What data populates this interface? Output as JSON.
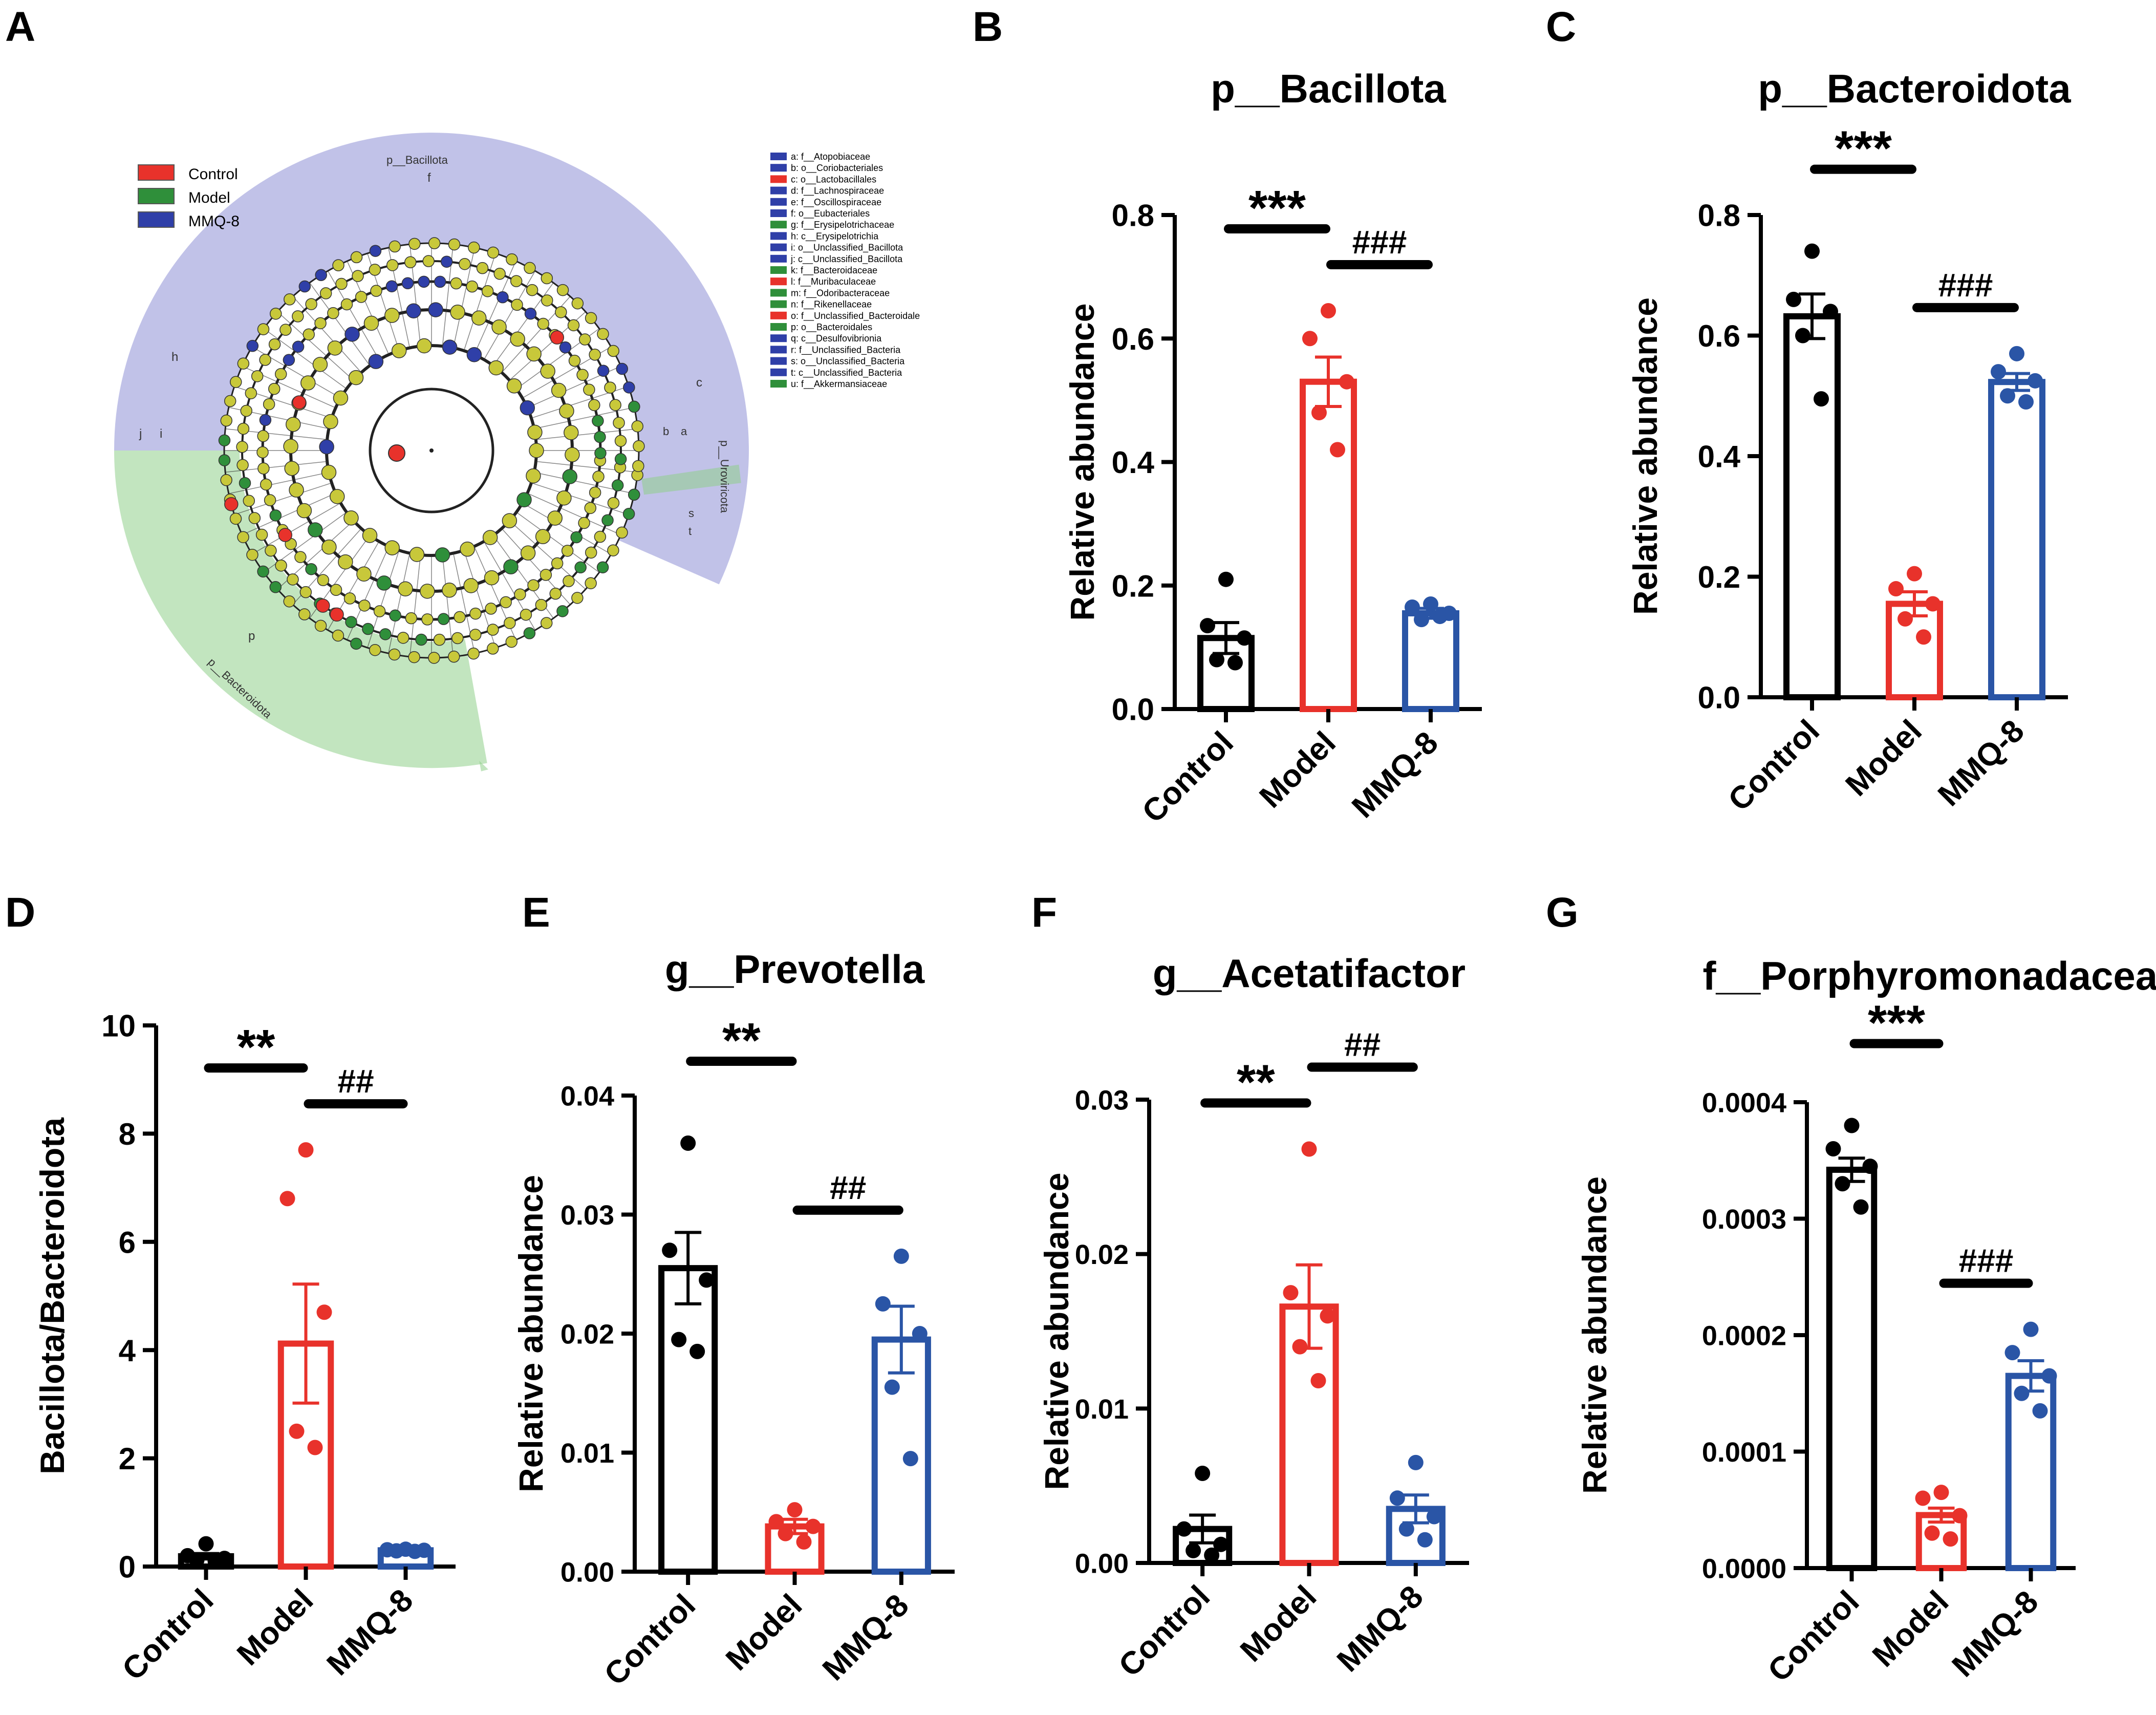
{
  "panel_labels": {
    "A": "A",
    "B": "B",
    "C": "C",
    "D": "D",
    "E": "E",
    "F": "F",
    "G": "G"
  },
  "colors": {
    "Control": "#000000",
    "Model": "#e8322b",
    "MMQ-8": "#2a55a6"
  },
  "cladogram": {
    "legend_groups": [
      {
        "name": "Control",
        "color": "#e8322b"
      },
      {
        "name": "Model",
        "color": "#2f8f3a"
      },
      {
        "name": "MMQ-8",
        "color": "#2f3fa8"
      }
    ],
    "clade_labels": {
      "bacillota": "p__Bacillota",
      "bacteroidota": "p__Bacteroidota",
      "urovircota": "p__Uroviricota"
    },
    "sector_letters": [
      "a",
      "b",
      "c",
      "d",
      "e",
      "f",
      "g",
      "h",
      "i",
      "j",
      "k",
      "l",
      "m",
      "n",
      "o",
      "p",
      "q",
      "r",
      "s",
      "t",
      "u"
    ],
    "taxa_legend": [
      {
        "text": "a: f__Atopobiaceae",
        "color": "#2f3fa8"
      },
      {
        "text": "b: o__Coriobacteriales",
        "color": "#2f3fa8"
      },
      {
        "text": "c: o__Lactobacillales",
        "color": "#e8322b"
      },
      {
        "text": "d: f__Lachnospiraceae",
        "color": "#2f3fa8"
      },
      {
        "text": "e: f__Oscillospiraceae",
        "color": "#2f3fa8"
      },
      {
        "text": "f: o__Eubacteriales",
        "color": "#2f3fa8"
      },
      {
        "text": "g: f__Erysipelotrichaceae",
        "color": "#2f8f3a"
      },
      {
        "text": "h: c__Erysipelotrichia",
        "color": "#2f3fa8"
      },
      {
        "text": "i: o__Unclassified_Bacillota",
        "color": "#2f3fa8"
      },
      {
        "text": "j: c__Unclassified_Bacillota",
        "color": "#2f3fa8"
      },
      {
        "text": "k: f__Bacteroidaceae",
        "color": "#2f8f3a"
      },
      {
        "text": "l: f__Muribaculaceae",
        "color": "#e8322b"
      },
      {
        "text": "m: f__Odoribacteraceae",
        "color": "#2f8f3a"
      },
      {
        "text": "n: f__Rikenellaceae",
        "color": "#2f8f3a"
      },
      {
        "text": "o: f__Unclassified_Bacteroidale",
        "color": "#e8322b"
      },
      {
        "text": "p: o__Bacteroidales",
        "color": "#2f8f3a"
      },
      {
        "text": "q: c__Desulfovibrionia",
        "color": "#2f3fa8"
      },
      {
        "text": "r: f__Unclassified_Bacteria",
        "color": "#2f3fa8"
      },
      {
        "text": "s: o__Unclassified_Bacteria",
        "color": "#2f3fa8"
      },
      {
        "text": "t: c__Unclassified_Bacteria",
        "color": "#2f3fa8"
      },
      {
        "text": "u: f__Akkermansiaceae",
        "color": "#2f8f3a"
      }
    ]
  },
  "chart_data": [
    {
      "panel": "B",
      "type": "bar",
      "title": "p__Bacillota",
      "xlabel": "",
      "ylabel": "Relative abundance",
      "categories": [
        "Control",
        "Model",
        "MMQ-8"
      ],
      "ylim": [
        0,
        0.8
      ],
      "yticks": [
        "0.0",
        "0.2",
        "0.4",
        "0.6",
        "0.8"
      ],
      "values": [
        0.115,
        0.53,
        0.155
      ],
      "sem": [
        0.025,
        0.04,
        0.008
      ],
      "points": [
        [
          0.21,
          0.135,
          0.115,
          0.08,
          0.075
        ],
        [
          0.645,
          0.6,
          0.53,
          0.48,
          0.42
        ],
        [
          0.17,
          0.165,
          0.155,
          0.145,
          0.15
        ]
      ],
      "annotations": [
        {
          "text": "***",
          "from": 0,
          "to": 1,
          "level": 1
        },
        {
          "text": "###",
          "from": 1,
          "to": 2,
          "level": 0
        }
      ],
      "grid": false
    },
    {
      "panel": "C",
      "type": "bar",
      "title": "p__Bacteroidota",
      "xlabel": "",
      "ylabel": "Relative abundance",
      "categories": [
        "Control",
        "Model",
        "MMQ-8"
      ],
      "ylim": [
        0,
        0.8
      ],
      "yticks": [
        "0.0",
        "0.2",
        "0.4",
        "0.6",
        "0.8"
      ],
      "values": [
        0.632,
        0.155,
        0.523
      ],
      "sem": [
        0.037,
        0.02,
        0.014
      ],
      "points": [
        [
          0.74,
          0.66,
          0.64,
          0.6,
          0.495
        ],
        [
          0.205,
          0.18,
          0.155,
          0.13,
          0.1
        ],
        [
          0.57,
          0.54,
          0.525,
          0.5,
          0.49
        ]
      ],
      "annotations": [
        {
          "text": "***",
          "from": 0,
          "to": 1,
          "level": 1
        },
        {
          "text": "###",
          "from": 1,
          "to": 2,
          "level": 0
        }
      ],
      "grid": false
    },
    {
      "panel": "D",
      "type": "bar",
      "title": "",
      "xlabel": "",
      "ylabel": "Bacillota/Bacteroidota",
      "categories": [
        "Control",
        "Model",
        "MMQ-8"
      ],
      "ylim": [
        0,
        10
      ],
      "yticks": [
        "0",
        "2",
        "4",
        "6",
        "8",
        "10"
      ],
      "values": [
        0.19,
        4.12,
        0.3
      ],
      "sem": [
        0.05,
        1.1,
        0.02
      ],
      "points": [
        [
          0.42,
          0.2,
          0.15,
          0.12,
          0.1
        ],
        [
          7.7,
          6.8,
          4.7,
          2.5,
          2.2
        ],
        [
          0.32,
          0.31,
          0.3,
          0.29,
          0.28
        ]
      ],
      "annotations": [
        {
          "text": "**",
          "from": 0,
          "to": 1,
          "level": 1
        },
        {
          "text": "##",
          "from": 1,
          "to": 2,
          "level": 0
        }
      ],
      "grid": false
    },
    {
      "panel": "E",
      "type": "bar",
      "title": "g__Prevotella",
      "xlabel": "",
      "ylabel": "Relative abundance",
      "categories": [
        "Control",
        "Model",
        "MMQ-8"
      ],
      "ylim": [
        0,
        0.04
      ],
      "yticks": [
        "0.00",
        "0.01",
        "0.02",
        "0.03",
        "0.04"
      ],
      "values": [
        0.0255,
        0.0038,
        0.0195
      ],
      "sem": [
        0.003,
        0.0006,
        0.0028
      ],
      "points": [
        [
          0.036,
          0.027,
          0.0245,
          0.0195,
          0.0185
        ],
        [
          0.0052,
          0.0042,
          0.0038,
          0.0032,
          0.0025
        ],
        [
          0.0265,
          0.0225,
          0.02,
          0.0155,
          0.0095
        ]
      ],
      "annotations": [
        {
          "text": "**",
          "from": 0,
          "to": 1,
          "level": 1
        },
        {
          "text": "##",
          "from": 1,
          "to": 2,
          "level": 0
        }
      ],
      "grid": false
    },
    {
      "panel": "F",
      "type": "bar",
      "title": "g__Acetatifactor",
      "xlabel": "",
      "ylabel": "Relative abundance",
      "categories": [
        "Control",
        "Model",
        "MMQ-8"
      ],
      "ylim": [
        0,
        0.03
      ],
      "yticks": [
        "0.00",
        "0.01",
        "0.02",
        "0.03"
      ],
      "values": [
        0.0022,
        0.0166,
        0.0035
      ],
      "sem": [
        0.0009,
        0.0027,
        0.0009
      ],
      "points": [
        [
          0.0058,
          0.0022,
          0.0012,
          0.0008,
          0.0005
        ],
        [
          0.0268,
          0.0175,
          0.016,
          0.014,
          0.0118
        ],
        [
          0.0065,
          0.0042,
          0.003,
          0.0022,
          0.0015
        ]
      ],
      "annotations": [
        {
          "text": "**",
          "from": 0,
          "to": 1,
          "level": 0
        },
        {
          "text": "##",
          "from": 1,
          "to": 2,
          "level": 1
        }
      ],
      "grid": false
    },
    {
      "panel": "G",
      "type": "bar",
      "title": "f__Porphyromonadaceae",
      "xlabel": "",
      "ylabel": "Relative abundance",
      "categories": [
        "Control",
        "Model",
        "MMQ-8"
      ],
      "ylim": [
        0,
        0.0004
      ],
      "yticks": [
        "0.0000",
        "0.0001",
        "0.0002",
        "0.0003",
        "0.0004"
      ],
      "values": [
        0.000342,
        4.55e-05,
        0.000165
      ],
      "sem": [
        1e-05,
        6e-06,
        1.3e-05
      ],
      "points": [
        [
          0.00038,
          0.00036,
          0.000345,
          0.00033,
          0.00031
        ],
        [
          6.5e-05,
          6e-05,
          4.5e-05,
          3e-05,
          2.5e-05
        ],
        [
          0.000205,
          0.000185,
          0.000165,
          0.00015,
          0.000135
        ]
      ],
      "annotations": [
        {
          "text": "***",
          "from": 0,
          "to": 1,
          "level": 1
        },
        {
          "text": "###",
          "from": 1,
          "to": 2,
          "level": 0
        }
      ],
      "grid": false
    }
  ]
}
